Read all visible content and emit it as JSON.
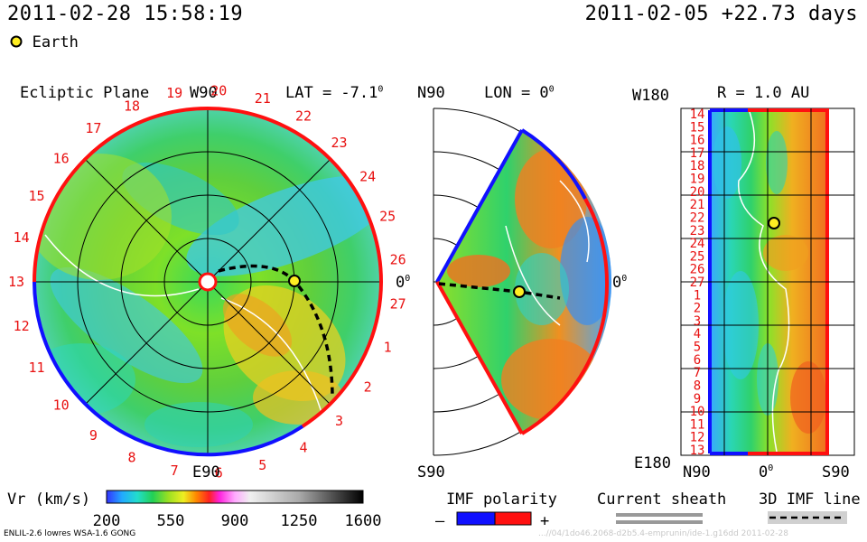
{
  "header": {
    "timestamp": "2011-02-28 15:58:19",
    "run_info": "2011-02-05 +22.73 days",
    "earth_legend": "Earth"
  },
  "colors": {
    "earth": "#ffee22",
    "polarity_negative": "#1010ff",
    "polarity_positive": "#ff1010"
  },
  "chart_data": [
    {
      "type": "heatmap",
      "panel": "ecliptic",
      "title": "Ecliptic Plane",
      "lat_label": "LAT = -7.1",
      "lat_unit": "0",
      "top_label": "W90",
      "bottom_label": "E90",
      "right_label": "0",
      "right_unit": "0",
      "rim_numbers": [
        "19",
        "20",
        "21",
        "22",
        "23",
        "24",
        "25",
        "26",
        "27",
        "1",
        "2",
        "3",
        "4",
        "5",
        "6",
        "7",
        "8",
        "9",
        "10",
        "11",
        "12",
        "13",
        "14",
        "15",
        "16",
        "17",
        "18"
      ]
    },
    {
      "type": "heatmap",
      "panel": "meridional",
      "top_label": "N90",
      "lon_label": "LON = 0",
      "lon_unit": "0",
      "bottom_label": "S90",
      "right_label": "0",
      "right_unit": "0"
    },
    {
      "type": "heatmap",
      "panel": "synoptic",
      "title": "R = 1.0 AU",
      "top_left_label": "W180",
      "bottom_left_label": "E180",
      "y_ticks": [
        "14",
        "15",
        "16",
        "17",
        "18",
        "19",
        "20",
        "21",
        "22",
        "23",
        "24",
        "25",
        "26",
        "27",
        "1",
        "2",
        "3",
        "4",
        "5",
        "6",
        "7",
        "8",
        "9",
        "10",
        "11",
        "12",
        "13"
      ],
      "x_ticks": [
        "N90",
        "0",
        "S90"
      ],
      "x_zero_unit": "0"
    },
    {
      "type": "heatmap",
      "panel": "colorbar",
      "label": "Vr (km/s)",
      "ticks": [
        200,
        550,
        900,
        1250,
        1600
      ],
      "range": [
        200,
        1600
      ]
    }
  ],
  "legend": {
    "imf_polarity": "IMF polarity",
    "minus": "–",
    "plus": "+",
    "current_sheath": "Current sheath",
    "imf_line": "3D IMF line"
  },
  "footer": {
    "model": "ENLIL-2.6 lowres WSA-1.6 GONG",
    "watermark": "...//04/1do46.2068-d2b5.4-emprunin/ide-1.g16dd  2011-02-28"
  }
}
